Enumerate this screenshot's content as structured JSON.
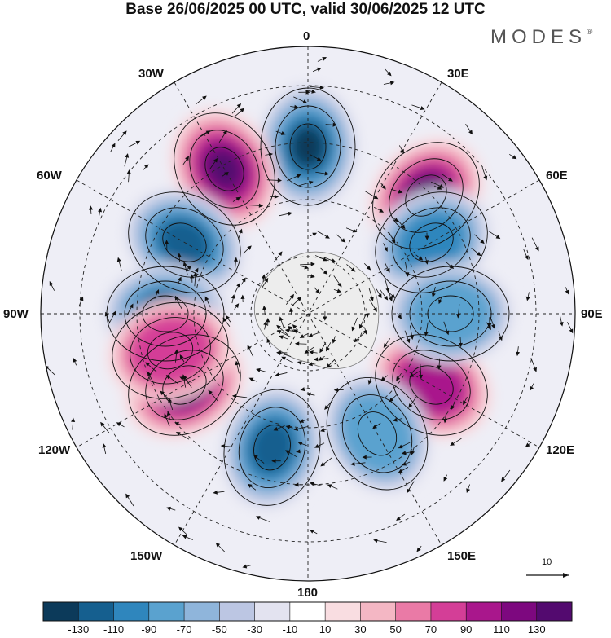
{
  "title": "Base 26/06/2025 00 UTC, valid 30/06/2025 12 UTC",
  "brand": "MODES",
  "brand_mark": "®",
  "longitude_labels": {
    "l0": "0",
    "l30e": "30E",
    "l60e": "60E",
    "l90e": "90E",
    "l120e": "120E",
    "l150e": "150E",
    "l180": "180",
    "l150w": "150W",
    "l120w": "120W",
    "l90w": "90W",
    "l60w": "60W",
    "l30w": "30W"
  },
  "vector_reference": "10",
  "colorbar": {
    "colors": [
      "#0c3a5a",
      "#155f8f",
      "#2f86bd",
      "#5aa2cf",
      "#8fb5db",
      "#bcc6e3",
      "#e3e3f0",
      "#ffffff",
      "#f9dde1",
      "#f4b7c4",
      "#ea7aa6",
      "#d43e97",
      "#a9178c",
      "#7d087f",
      "#530a6f"
    ],
    "ticks": [
      "-130",
      "-110",
      "-90",
      "-70",
      "-50",
      "-30",
      "-10",
      "10",
      "30",
      "50",
      "70",
      "90",
      "110",
      "130"
    ]
  },
  "map_data": {
    "projection": "south polar stereographic",
    "highlighted_anomalies": [
      {
        "sign": "negative",
        "lon": 0,
        "level": -110
      },
      {
        "sign": "positive",
        "lon": 45,
        "level": 130
      },
      {
        "sign": "positive",
        "lon": -30,
        "level": 110
      },
      {
        "sign": "negative",
        "lon": -60,
        "level": -90
      },
      {
        "sign": "negative",
        "lon": 60,
        "level": -70
      },
      {
        "sign": "negative",
        "lon": -90,
        "level": -110
      },
      {
        "sign": "positive",
        "lon": -120,
        "level": 130
      },
      {
        "sign": "negative",
        "lon": -165,
        "level": -90
      },
      {
        "sign": "positive",
        "lon": 120,
        "level": 70
      },
      {
        "sign": "negative",
        "lon": 90,
        "level": -50
      },
      {
        "sign": "negative",
        "lon": 150,
        "level": -50
      },
      {
        "sign": "positive",
        "lon": -105,
        "level": 50
      }
    ]
  }
}
